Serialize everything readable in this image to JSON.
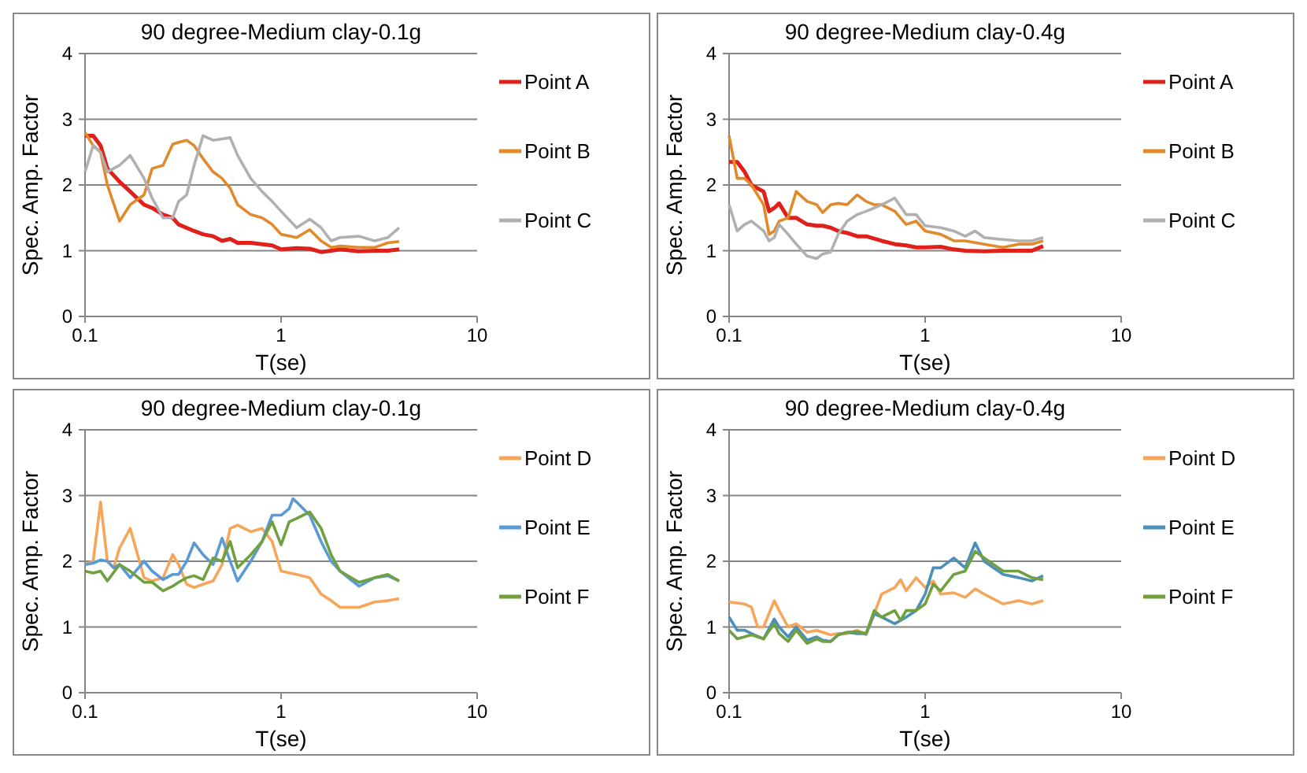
{
  "chart_data": [
    {
      "type": "line",
      "title": "90 degree-Medium  clay-0.1g",
      "xlabel": "T(se)",
      "ylabel": "Spec. Amp. Factor",
      "log": "x",
      "xlim": [
        0.1,
        10
      ],
      "xticks": [
        0.1,
        1,
        10
      ],
      "ylim": [
        0,
        4
      ],
      "yticks": [
        0,
        1,
        2,
        3,
        4
      ],
      "grid": "y",
      "legend": "right",
      "series": [
        {
          "name": "Point A",
          "color": "#e0201b",
          "x": [
            0.1,
            0.11,
            0.12,
            0.13,
            0.15,
            0.17,
            0.2,
            0.22,
            0.25,
            0.28,
            0.3,
            0.36,
            0.4,
            0.45,
            0.5,
            0.55,
            0.6,
            0.7,
            0.8,
            0.9,
            1,
            1.2,
            1.4,
            1.6,
            1.8,
            2,
            2.5,
            3,
            3.5,
            4
          ],
          "values": [
            2.75,
            2.75,
            2.6,
            2.25,
            2.05,
            1.9,
            1.7,
            1.65,
            1.55,
            1.5,
            1.4,
            1.3,
            1.25,
            1.22,
            1.15,
            1.18,
            1.12,
            1.12,
            1.1,
            1.08,
            1.02,
            1.04,
            1.03,
            0.98,
            1.0,
            1.02,
            0.99,
            1.0,
            1.0,
            1.02
          ]
        },
        {
          "name": "Point B",
          "color": "#e08a2c",
          "x": [
            0.1,
            0.11,
            0.12,
            0.13,
            0.15,
            0.17,
            0.2,
            0.22,
            0.25,
            0.28,
            0.3,
            0.33,
            0.36,
            0.4,
            0.45,
            0.5,
            0.55,
            0.6,
            0.7,
            0.8,
            0.9,
            1,
            1.2,
            1.4,
            1.6,
            1.8,
            2,
            2.5,
            3,
            3.5,
            4
          ],
          "values": [
            2.8,
            2.6,
            2.5,
            2.0,
            1.45,
            1.7,
            1.85,
            2.25,
            2.3,
            2.62,
            2.65,
            2.68,
            2.6,
            2.4,
            2.2,
            2.1,
            1.95,
            1.7,
            1.55,
            1.5,
            1.4,
            1.25,
            1.2,
            1.32,
            1.15,
            1.05,
            1.07,
            1.05,
            1.05,
            1.12,
            1.14
          ]
        },
        {
          "name": "Point C",
          "color": "#b0b0b0",
          "x": [
            0.1,
            0.11,
            0.12,
            0.13,
            0.15,
            0.17,
            0.2,
            0.22,
            0.25,
            0.28,
            0.3,
            0.33,
            0.36,
            0.4,
            0.45,
            0.5,
            0.55,
            0.6,
            0.7,
            0.8,
            0.9,
            1,
            1.2,
            1.4,
            1.6,
            1.8,
            2,
            2.5,
            3,
            3.5,
            4
          ],
          "values": [
            2.2,
            2.6,
            2.5,
            2.2,
            2.3,
            2.45,
            2.1,
            1.8,
            1.5,
            1.5,
            1.75,
            1.85,
            2.3,
            2.75,
            2.68,
            2.7,
            2.72,
            2.45,
            2.1,
            1.9,
            1.75,
            1.6,
            1.35,
            1.48,
            1.35,
            1.15,
            1.2,
            1.22,
            1.15,
            1.2,
            1.35
          ]
        }
      ]
    },
    {
      "type": "line",
      "title": "90 degree-Medium  clay-0.4g",
      "xlabel": "T(se)",
      "ylabel": "Spec. Amp. Factor",
      "log": "x",
      "xlim": [
        0.1,
        10
      ],
      "xticks": [
        0.1,
        1,
        10
      ],
      "ylim": [
        0,
        4
      ],
      "yticks": [
        0,
        1,
        2,
        3,
        4
      ],
      "grid": "y",
      "legend": "right",
      "series": [
        {
          "name": "Point A",
          "color": "#e0201b",
          "x": [
            0.1,
            0.11,
            0.12,
            0.13,
            0.15,
            0.16,
            0.17,
            0.18,
            0.2,
            0.22,
            0.25,
            0.28,
            0.3,
            0.33,
            0.36,
            0.4,
            0.45,
            0.5,
            0.6,
            0.7,
            0.8,
            0.9,
            1,
            1.2,
            1.4,
            1.6,
            2,
            2.5,
            3,
            3.5,
            4
          ],
          "values": [
            2.35,
            2.35,
            2.2,
            2.0,
            1.9,
            1.6,
            1.65,
            1.72,
            1.5,
            1.5,
            1.4,
            1.38,
            1.38,
            1.35,
            1.3,
            1.27,
            1.22,
            1.22,
            1.15,
            1.1,
            1.08,
            1.05,
            1.05,
            1.06,
            1.02,
            1.0,
            0.99,
            1.0,
            1.0,
            1.0,
            1.07
          ]
        },
        {
          "name": "Point B",
          "color": "#e08a2c",
          "x": [
            0.1,
            0.11,
            0.12,
            0.13,
            0.15,
            0.16,
            0.17,
            0.18,
            0.2,
            0.22,
            0.25,
            0.28,
            0.3,
            0.33,
            0.36,
            0.4,
            0.45,
            0.5,
            0.55,
            0.6,
            0.7,
            0.8,
            0.9,
            1,
            1.2,
            1.4,
            1.6,
            2,
            2.5,
            3,
            3.5,
            4
          ],
          "values": [
            2.75,
            2.1,
            2.1,
            2.0,
            1.7,
            1.25,
            1.3,
            1.45,
            1.5,
            1.9,
            1.75,
            1.7,
            1.58,
            1.7,
            1.72,
            1.7,
            1.85,
            1.75,
            1.7,
            1.7,
            1.6,
            1.4,
            1.45,
            1.3,
            1.25,
            1.15,
            1.15,
            1.1,
            1.05,
            1.1,
            1.1,
            1.15
          ]
        },
        {
          "name": "Point C",
          "color": "#b0b0b0",
          "x": [
            0.1,
            0.11,
            0.12,
            0.13,
            0.15,
            0.16,
            0.17,
            0.18,
            0.2,
            0.22,
            0.25,
            0.28,
            0.3,
            0.33,
            0.36,
            0.4,
            0.45,
            0.5,
            0.55,
            0.6,
            0.7,
            0.8,
            0.9,
            1,
            1.2,
            1.4,
            1.6,
            1.8,
            2,
            2.5,
            3,
            3.5,
            4
          ],
          "values": [
            1.7,
            1.3,
            1.4,
            1.45,
            1.3,
            1.15,
            1.2,
            1.4,
            1.25,
            1.1,
            0.92,
            0.88,
            0.95,
            0.98,
            1.25,
            1.45,
            1.55,
            1.6,
            1.65,
            1.7,
            1.8,
            1.55,
            1.55,
            1.38,
            1.35,
            1.3,
            1.22,
            1.3,
            1.2,
            1.17,
            1.15,
            1.15,
            1.2
          ]
        }
      ]
    },
    {
      "type": "line",
      "title": "90 degree-Medium  clay-0.1g",
      "xlabel": "T(se)",
      "ylabel": "Spec. Amp. Factor",
      "log": "x",
      "xlim": [
        0.1,
        10
      ],
      "xticks": [
        0.1,
        1,
        10
      ],
      "ylim": [
        0,
        4
      ],
      "yticks": [
        0,
        1,
        2,
        3,
        4
      ],
      "grid": "y",
      "legend": "right",
      "series": [
        {
          "name": "Point D",
          "color": "#f5a65b",
          "x": [
            0.1,
            0.11,
            0.12,
            0.13,
            0.14,
            0.15,
            0.17,
            0.2,
            0.22,
            0.25,
            0.28,
            0.3,
            0.33,
            0.36,
            0.4,
            0.45,
            0.5,
            0.55,
            0.6,
            0.7,
            0.8,
            0.9,
            1,
            1.2,
            1.4,
            1.6,
            1.8,
            2,
            2.5,
            3,
            3.5,
            4
          ],
          "values": [
            1.95,
            2.0,
            2.9,
            2.0,
            1.9,
            2.2,
            2.5,
            1.75,
            1.7,
            1.75,
            2.1,
            1.95,
            1.65,
            1.6,
            1.65,
            1.7,
            1.95,
            2.5,
            2.55,
            2.45,
            2.5,
            2.3,
            1.85,
            1.8,
            1.75,
            1.5,
            1.4,
            1.3,
            1.3,
            1.38,
            1.4,
            1.43
          ]
        },
        {
          "name": "Point E",
          "color": "#5b9bd5",
          "x": [
            0.1,
            0.11,
            0.12,
            0.13,
            0.14,
            0.15,
            0.17,
            0.2,
            0.22,
            0.25,
            0.28,
            0.3,
            0.33,
            0.36,
            0.4,
            0.45,
            0.5,
            0.55,
            0.6,
            0.7,
            0.8,
            0.9,
            1,
            1.1,
            1.15,
            1.2,
            1.4,
            1.6,
            1.8,
            2,
            2.5,
            3,
            3.5,
            4
          ],
          "values": [
            1.95,
            1.97,
            2.02,
            2.0,
            1.9,
            1.95,
            1.75,
            2.0,
            1.85,
            1.72,
            1.8,
            1.8,
            2.0,
            2.28,
            2.1,
            1.95,
            2.35,
            2.0,
            1.7,
            2.0,
            2.3,
            2.7,
            2.7,
            2.8,
            2.95,
            2.9,
            2.7,
            2.3,
            2.0,
            1.85,
            1.62,
            1.75,
            1.78,
            1.7
          ]
        },
        {
          "name": "Point F",
          "color": "#70a040",
          "x": [
            0.1,
            0.11,
            0.12,
            0.13,
            0.15,
            0.17,
            0.2,
            0.22,
            0.25,
            0.28,
            0.3,
            0.33,
            0.36,
            0.4,
            0.45,
            0.5,
            0.55,
            0.6,
            0.7,
            0.8,
            0.9,
            1,
            1.1,
            1.2,
            1.4,
            1.6,
            1.8,
            2,
            2.5,
            3,
            3.5,
            4
          ],
          "values": [
            1.85,
            1.82,
            1.85,
            1.7,
            1.95,
            1.85,
            1.68,
            1.68,
            1.55,
            1.62,
            1.68,
            1.75,
            1.78,
            1.72,
            2.05,
            2.0,
            2.3,
            1.9,
            2.1,
            2.3,
            2.6,
            2.25,
            2.6,
            2.65,
            2.75,
            2.5,
            2.1,
            1.85,
            1.68,
            1.75,
            1.8,
            1.7
          ]
        }
      ]
    },
    {
      "type": "line",
      "title": "90 degree-Medium  clay-0.4g",
      "xlabel": "T(se)",
      "ylabel": "Spec. Amp. Factor",
      "log": "x",
      "xlim": [
        0.1,
        10
      ],
      "xticks": [
        0.1,
        1,
        10
      ],
      "ylim": [
        0,
        4
      ],
      "yticks": [
        0,
        1,
        2,
        3,
        4
      ],
      "grid": "y",
      "legend": "right",
      "series": [
        {
          "name": "Point D",
          "color": "#f5a65b",
          "x": [
            0.1,
            0.12,
            0.13,
            0.14,
            0.15,
            0.17,
            0.18,
            0.2,
            0.22,
            0.25,
            0.28,
            0.3,
            0.33,
            0.36,
            0.4,
            0.45,
            0.5,
            0.55,
            0.6,
            0.7,
            0.75,
            0.8,
            0.9,
            1,
            1.1,
            1.2,
            1.4,
            1.6,
            1.8,
            2,
            2.5,
            3,
            3.5,
            4
          ],
          "values": [
            1.38,
            1.35,
            1.3,
            1.0,
            1.0,
            1.4,
            1.25,
            1.0,
            1.05,
            0.92,
            0.95,
            0.92,
            0.88,
            0.9,
            0.9,
            0.95,
            0.88,
            1.2,
            1.5,
            1.6,
            1.72,
            1.55,
            1.75,
            1.6,
            1.7,
            1.5,
            1.52,
            1.45,
            1.58,
            1.5,
            1.35,
            1.4,
            1.35,
            1.4
          ]
        },
        {
          "name": "Point E",
          "color": "#4a90b8",
          "x": [
            0.1,
            0.11,
            0.12,
            0.13,
            0.15,
            0.17,
            0.18,
            0.2,
            0.22,
            0.25,
            0.28,
            0.3,
            0.33,
            0.36,
            0.4,
            0.45,
            0.5,
            0.55,
            0.6,
            0.7,
            0.8,
            0.9,
            1,
            1.1,
            1.2,
            1.4,
            1.6,
            1.8,
            2,
            2.5,
            3,
            3.5,
            4
          ],
          "values": [
            1.15,
            0.95,
            0.95,
            0.9,
            0.82,
            1.12,
            1.0,
            0.85,
            1.0,
            0.8,
            0.85,
            0.8,
            0.78,
            0.88,
            0.92,
            0.9,
            0.9,
            1.2,
            1.15,
            1.05,
            1.15,
            1.25,
            1.5,
            1.9,
            1.9,
            2.05,
            1.9,
            2.28,
            2.0,
            1.8,
            1.75,
            1.7,
            1.78
          ]
        },
        {
          "name": "Point F",
          "color": "#70a040",
          "x": [
            0.1,
            0.11,
            0.12,
            0.13,
            0.15,
            0.17,
            0.18,
            0.2,
            0.22,
            0.25,
            0.28,
            0.3,
            0.33,
            0.36,
            0.4,
            0.45,
            0.5,
            0.55,
            0.6,
            0.7,
            0.75,
            0.8,
            0.9,
            1,
            1.1,
            1.2,
            1.4,
            1.6,
            1.8,
            2,
            2.5,
            3,
            3.5,
            4
          ],
          "values": [
            0.95,
            0.82,
            0.85,
            0.88,
            0.82,
            1.05,
            0.9,
            0.78,
            0.95,
            0.75,
            0.82,
            0.78,
            0.78,
            0.88,
            0.92,
            0.93,
            0.9,
            1.25,
            1.15,
            1.25,
            1.1,
            1.25,
            1.25,
            1.35,
            1.65,
            1.55,
            1.8,
            1.85,
            2.15,
            2.05,
            1.85,
            1.85,
            1.75,
            1.72
          ]
        }
      ]
    }
  ]
}
